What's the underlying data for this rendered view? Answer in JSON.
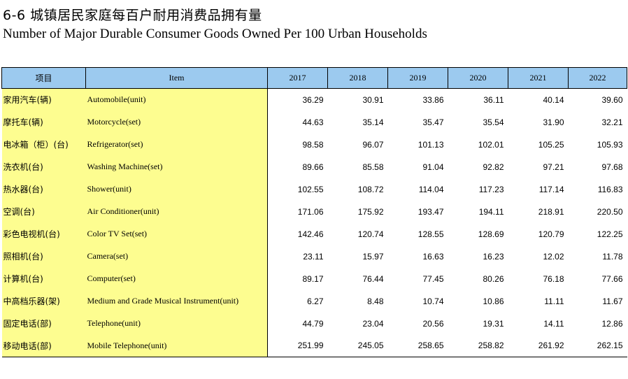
{
  "title": {
    "cn": "6-6 城镇居民家庭每百户耐用消费品拥有量",
    "en": "Number of Major Durable Consumer Goods Owned Per 100 Urban Households"
  },
  "table": {
    "headers": [
      "项目",
      "Item",
      "2017",
      "2018",
      "2019",
      "2020",
      "2021",
      "2022"
    ],
    "rows": [
      {
        "cn": "家用汽车(辆)",
        "en": "Automobile(unit)",
        "values": [
          "36.29",
          "30.91",
          "33.86",
          "36.11",
          "40.14",
          "39.60"
        ]
      },
      {
        "cn": "摩托车(辆)",
        "en": "Motorcycle(set)",
        "values": [
          "44.63",
          "35.14",
          "35.47",
          "35.54",
          "31.90",
          "32.21"
        ]
      },
      {
        "cn": "电冰箱（柜）(台)",
        "en": "Refrigerator(set)",
        "values": [
          "98.58",
          "96.07",
          "101.13",
          "102.01",
          "105.25",
          "105.93"
        ]
      },
      {
        "cn": "洗衣机(台)",
        "en": "Washing Machine(set)",
        "values": [
          "89.66",
          "85.58",
          "91.04",
          "92.82",
          "97.21",
          "97.68"
        ]
      },
      {
        "cn": "热水器(台)",
        "en": "Shower(unit)",
        "values": [
          "102.55",
          "108.72",
          "114.04",
          "117.23",
          "117.14",
          "116.83"
        ]
      },
      {
        "cn": "空调(台)",
        "en": "Air Conditioner(unit)",
        "values": [
          "171.06",
          "175.92",
          "193.47",
          "194.11",
          "218.91",
          "220.50"
        ]
      },
      {
        "cn": "彩色电视机(台)",
        "en": "Color TV Set(set)",
        "values": [
          "142.46",
          "120.74",
          "128.55",
          "128.69",
          "120.79",
          "122.25"
        ]
      },
      {
        "cn": "照相机(台)",
        "en": "Camera(set)",
        "values": [
          "23.11",
          "15.97",
          "16.63",
          "16.23",
          "12.02",
          "11.78"
        ]
      },
      {
        "cn": "计算机(台)",
        "en": "Computer(set)",
        "values": [
          "89.17",
          "76.44",
          "77.45",
          "80.26",
          "76.18",
          "77.66"
        ]
      },
      {
        "cn": "中高档乐器(架)",
        "en": "Medium and Grade Musical Instrument(unit)",
        "values": [
          "6.27",
          "8.48",
          "10.74",
          "10.86",
          "11.11",
          "11.67"
        ]
      },
      {
        "cn": "固定电话(部)",
        "en": "Telephone(unit)",
        "values": [
          "44.79",
          "23.04",
          "20.56",
          "19.31",
          "14.11",
          "12.86"
        ]
      },
      {
        "cn": "移动电话(部)",
        "en": "Mobile Telephone(unit)",
        "values": [
          "251.99",
          "245.05",
          "258.65",
          "258.82",
          "261.92",
          "262.15"
        ]
      }
    ]
  }
}
